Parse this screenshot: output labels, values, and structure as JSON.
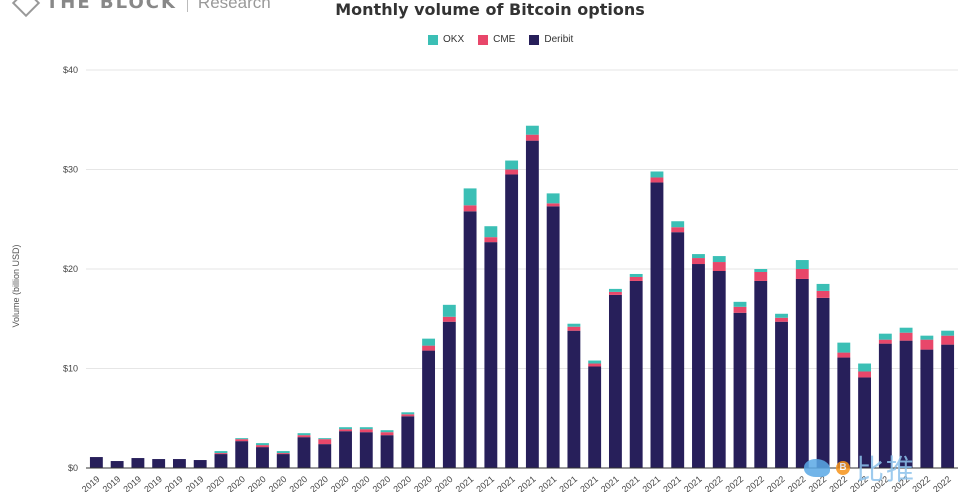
{
  "brand": {
    "name": "THE BLOCK",
    "sub": "Research"
  },
  "watermark": {
    "coin": "B",
    "text": "比推"
  },
  "colors": {
    "okx": "#3bbfb5",
    "cme": "#e8476a",
    "deribit": "#271f5a",
    "grid": "#e6e6e6",
    "axis": "#333333"
  },
  "chart_data": {
    "type": "bar",
    "stacked": true,
    "title": "Monthly volume of Bitcoin options",
    "ylabel": "Volume (billion USD)",
    "ylim": [
      0,
      40
    ],
    "yticks": [
      "$0",
      "$10",
      "$20",
      "$30",
      "$40"
    ],
    "legend_position": "top-center",
    "grid": true,
    "categories": [
      "2019",
      "2019",
      "2019",
      "2019",
      "2019",
      "2019",
      "2020",
      "2020",
      "2020",
      "2020",
      "2020",
      "2020",
      "2020",
      "2020",
      "2020",
      "2020",
      "2020",
      "2020",
      "2021",
      "2021",
      "2021",
      "2021",
      "2021",
      "2021",
      "2021",
      "2021",
      "2021",
      "2021",
      "2021",
      "2021",
      "2022",
      "2022",
      "2022",
      "2022",
      "2022",
      "2022",
      "2022",
      "2022",
      "2022",
      "2022",
      "2022",
      "2022"
    ],
    "series": [
      {
        "name": "Deribit",
        "values": [
          1.1,
          0.7,
          1.0,
          0.9,
          0.9,
          0.8,
          1.4,
          2.7,
          2.1,
          1.4,
          3.1,
          2.4,
          3.7,
          3.6,
          3.3,
          5.2,
          11.8,
          14.7,
          25.8,
          22.7,
          29.5,
          32.9,
          26.3,
          13.8,
          10.2,
          17.4,
          18.8,
          28.7,
          23.7,
          20.5,
          19.8,
          15.6,
          18.8,
          14.7,
          19.0,
          17.1,
          11.1,
          9.1,
          12.5,
          12.8,
          11.9,
          12.4
        ]
      },
      {
        "name": "CME",
        "values": [
          0.0,
          0.0,
          0.0,
          0.0,
          0.0,
          0.0,
          0.1,
          0.2,
          0.2,
          0.1,
          0.2,
          0.5,
          0.2,
          0.3,
          0.3,
          0.2,
          0.5,
          0.5,
          0.6,
          0.5,
          0.5,
          0.6,
          0.3,
          0.4,
          0.3,
          0.3,
          0.4,
          0.5,
          0.5,
          0.6,
          0.9,
          0.6,
          0.9,
          0.4,
          1.0,
          0.7,
          0.5,
          0.6,
          0.4,
          0.8,
          1.0,
          0.9
        ]
      },
      {
        "name": "OKX",
        "values": [
          0.0,
          0.0,
          0.0,
          0.0,
          0.0,
          0.0,
          0.2,
          0.1,
          0.2,
          0.2,
          0.2,
          0.1,
          0.2,
          0.2,
          0.2,
          0.2,
          0.7,
          1.2,
          1.7,
          1.1,
          0.9,
          0.9,
          1.0,
          0.3,
          0.3,
          0.3,
          0.3,
          0.6,
          0.6,
          0.4,
          0.6,
          0.5,
          0.3,
          0.4,
          0.9,
          0.7,
          1.0,
          0.8,
          0.6,
          0.5,
          0.4,
          0.5
        ]
      }
    ]
  }
}
